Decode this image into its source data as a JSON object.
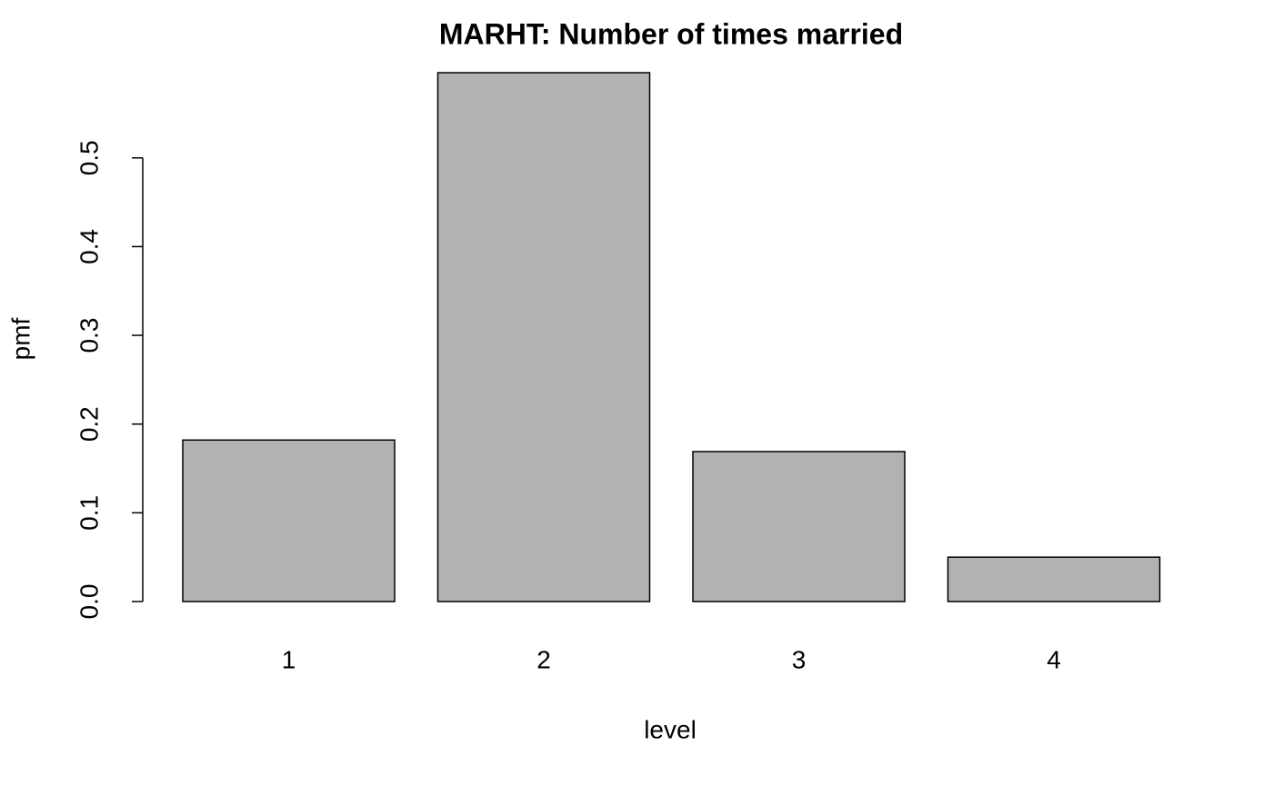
{
  "chart_data": {
    "type": "bar",
    "title": "MARHT: Number of times married",
    "x_label": "level",
    "y_label": "pmf",
    "categories": [
      "1",
      "2",
      "3",
      "4"
    ],
    "values": [
      0.182,
      0.596,
      0.169,
      0.05
    ],
    "color": "#b2b2b2",
    "ylim": [
      0,
      0.596
    ],
    "yticks": [
      {
        "value": 0,
        "label": "0.0"
      },
      0.1,
      0.2,
      0.3,
      0.4,
      0.5
    ]
  }
}
